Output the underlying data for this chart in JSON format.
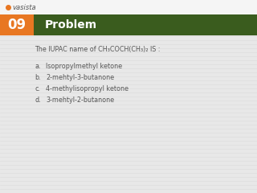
{
  "problem_number": "09",
  "header_text": "Problem",
  "header_bg": "#3a5c1e",
  "number_bg": "#e87722",
  "question": "The IUPAC name of CH₃COCH(CH₃)₂ IS :",
  "options": [
    {
      "label": "a.",
      "text": "Isopropylmethyl ketone"
    },
    {
      "label": "b.",
      "text": "2-mehtyl-3-butanone"
    },
    {
      "label": "c.",
      "text": "4-methylisopropyl ketone"
    },
    {
      "label": "d.",
      "text": "3-mehtyl-2-butanone"
    }
  ],
  "bg_color": "#e8e8e8",
  "stripe_color": "#d8d8d8",
  "text_color": "#555555",
  "logo_text": "vasista",
  "logo_color": "#e87722",
  "top_bar_color": "#555555",
  "fig_width": 3.2,
  "fig_height": 2.4,
  "dpi": 100
}
